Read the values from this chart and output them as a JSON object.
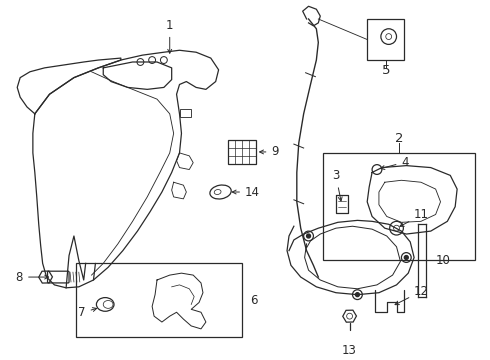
{
  "bg_color": "#ffffff",
  "line_color": "#2a2a2a",
  "figsize": [
    4.9,
    3.6
  ],
  "dpi": 100
}
